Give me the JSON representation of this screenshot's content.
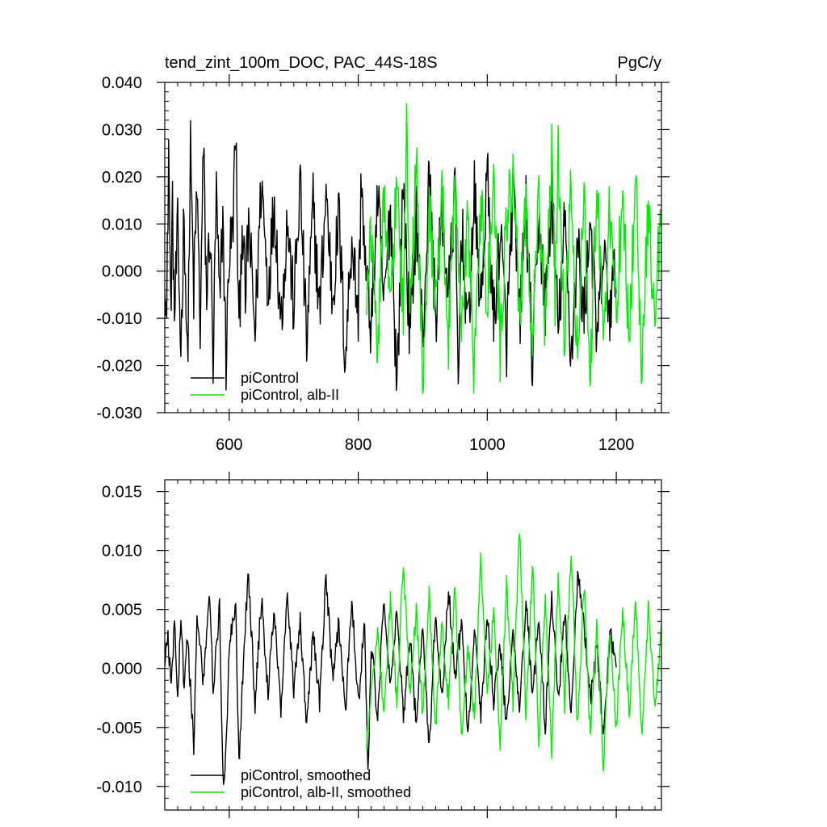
{
  "header": {
    "title": "tend_zint_100m_DOC, PAC_44S-18S",
    "units": "PgC/y"
  },
  "colors": {
    "control": "#000000",
    "alb": "#00ee00"
  },
  "chart_data": [
    {
      "type": "line",
      "title": "tend_zint_100m_DOC, PAC_44S-18S",
      "units_label": "PgC/y",
      "xlabel": "",
      "ylabel": "",
      "xlim": [
        500,
        1270
      ],
      "ylim": [
        -0.03,
        0.04
      ],
      "xticks": [
        600,
        800,
        1000,
        1200
      ],
      "xtick_labels": [
        "600",
        "800",
        "1000",
        "1200"
      ],
      "yticks": [
        -0.03,
        -0.02,
        -0.01,
        0.0,
        0.01,
        0.02,
        0.03,
        0.04
      ],
      "ytick_labels": [
        "-0.030",
        "-0.020",
        "-0.010",
        "0.000",
        "0.010",
        "0.020",
        "0.030",
        "0.040"
      ],
      "legend_position": "bottom-left",
      "grid": false,
      "series": [
        {
          "name": "piControl",
          "color": "#000000",
          "x_range": [
            500,
            1200
          ],
          "x": [
            500,
            503,
            506,
            509,
            512,
            515,
            520,
            525,
            530,
            535,
            540,
            545,
            550,
            555,
            560,
            565,
            570,
            575,
            580,
            585,
            590,
            595,
            600,
            605,
            610,
            615,
            620,
            625,
            630,
            640,
            650,
            660,
            670,
            680,
            690,
            700,
            710,
            720,
            730,
            740,
            750,
            760,
            770,
            780,
            790,
            800,
            805,
            810,
            820,
            830,
            840,
            850,
            855,
            860,
            870,
            880,
            890,
            900,
            910,
            920,
            930,
            940,
            950,
            955,
            960,
            970,
            980,
            990,
            1000,
            1010,
            1020,
            1030,
            1040,
            1050,
            1060,
            1070,
            1080,
            1090,
            1100,
            1110,
            1120,
            1130,
            1140,
            1150,
            1160,
            1170,
            1180,
            1190,
            1200
          ],
          "values": [
            0.003,
            -0.012,
            0.028,
            -0.008,
            0.012,
            -0.01,
            0.008,
            -0.017,
            0.014,
            -0.021,
            0.025,
            -0.005,
            0.018,
            -0.012,
            0.026,
            -0.006,
            0.01,
            -0.02,
            0.016,
            -0.008,
            0.012,
            -0.019,
            0.004,
            0.008,
            0.03,
            -0.015,
            0.012,
            -0.006,
            0.01,
            -0.013,
            0.02,
            -0.004,
            0.015,
            -0.011,
            0.011,
            -0.008,
            0.019,
            -0.016,
            0.014,
            -0.009,
            0.017,
            -0.006,
            0.012,
            -0.019,
            0.008,
            -0.01,
            0.022,
            0.002,
            -0.012,
            0.016,
            -0.008,
            0.014,
            -0.005,
            -0.024,
            0.019,
            -0.014,
            0.012,
            -0.015,
            0.02,
            -0.01,
            0.013,
            -0.006,
            0.018,
            -0.026,
            0.011,
            -0.014,
            0.016,
            -0.008,
            0.021,
            -0.012,
            0.009,
            -0.015,
            0.018,
            -0.011,
            0.014,
            -0.02,
            0.012,
            -0.008,
            0.016,
            -0.013,
            0.01,
            -0.018,
            0.006,
            -0.01,
            0.012,
            -0.016,
            0.004,
            -0.009,
            0.002
          ]
        },
        {
          "name": "piControl, alb-II",
          "color": "#00ee00",
          "x_range": [
            813,
            1270
          ],
          "x": [
            813,
            820,
            830,
            840,
            850,
            860,
            870,
            875,
            880,
            890,
            900,
            910,
            920,
            930,
            940,
            950,
            960,
            970,
            980,
            990,
            1000,
            1010,
            1020,
            1030,
            1040,
            1050,
            1060,
            1070,
            1080,
            1090,
            1100,
            1105,
            1110,
            1120,
            1130,
            1140,
            1150,
            1160,
            1170,
            1180,
            1190,
            1200,
            1210,
            1220,
            1230,
            1240,
            1250,
            1260,
            1270
          ],
          "values": [
            -0.002,
            0.008,
            -0.014,
            0.015,
            -0.008,
            0.02,
            -0.01,
            0.032,
            -0.012,
            0.024,
            -0.023,
            0.014,
            -0.008,
            0.017,
            -0.014,
            0.02,
            -0.01,
            0.012,
            -0.022,
            0.016,
            -0.006,
            0.019,
            -0.016,
            0.011,
            0.022,
            -0.01,
            0.014,
            -0.017,
            0.018,
            -0.012,
            0.026,
            -0.005,
            0.025,
            -0.014,
            0.018,
            -0.019,
            0.015,
            -0.02,
            0.02,
            -0.012,
            0.014,
            -0.009,
            0.018,
            -0.016,
            0.021,
            -0.022,
            0.015,
            -0.012,
            0.016
          ]
        }
      ]
    },
    {
      "type": "line",
      "title": "",
      "xlabel": "",
      "ylabel": "",
      "xlim": [
        500,
        1270
      ],
      "ylim": [
        -0.012,
        0.016
      ],
      "xticks": [
        600,
        800,
        1000,
        1200
      ],
      "xtick_labels": [],
      "yticks": [
        -0.01,
        -0.005,
        0.0,
        0.005,
        0.01,
        0.015
      ],
      "ytick_labels": [
        "-0.010",
        "-0.005",
        "0.000",
        "0.005",
        "0.010",
        "0.015"
      ],
      "legend_position": "bottom-left",
      "grid": false,
      "series": [
        {
          "name": "piControl, smoothed",
          "color": "#000000",
          "x_range": [
            500,
            1200
          ],
          "x": [
            500,
            505,
            510,
            515,
            520,
            525,
            530,
            535,
            545,
            550,
            560,
            570,
            575,
            585,
            590,
            593,
            600,
            610,
            615,
            625,
            630,
            640,
            650,
            660,
            670,
            680,
            690,
            700,
            710,
            720,
            730,
            740,
            750,
            760,
            770,
            780,
            790,
            800,
            810,
            815,
            820,
            830,
            840,
            850,
            860,
            870,
            880,
            890,
            900,
            910,
            920,
            930,
            940,
            950,
            960,
            970,
            980,
            990,
            1000,
            1010,
            1020,
            1030,
            1040,
            1050,
            1060,
            1070,
            1080,
            1090,
            1100,
            1110,
            1120,
            1130,
            1140,
            1150,
            1160,
            1170,
            1180,
            1190,
            1200
          ],
          "values": [
            0.001,
            0.003,
            -0.002,
            0.004,
            -0.003,
            0.005,
            -0.002,
            0.003,
            -0.0065,
            0.004,
            -0.001,
            0.006,
            -0.002,
            0.005,
            -0.0085,
            -0.01,
            0.002,
            0.005,
            -0.008,
            0.004,
            0.008,
            -0.003,
            0.006,
            -0.002,
            0.005,
            -0.004,
            0.007,
            -0.002,
            0.004,
            -0.005,
            0.003,
            -0.003,
            0.008,
            -0.001,
            0.004,
            -0.004,
            0.006,
            -0.003,
            0.004,
            -0.009,
            0.002,
            -0.004,
            0.006,
            -0.002,
            0.005,
            -0.004,
            0.003,
            -0.005,
            0.004,
            -0.007,
            0.005,
            -0.003,
            0.007,
            -0.001,
            0.004,
            -0.006,
            0.003,
            -0.004,
            0.005,
            -0.003,
            0.002,
            -0.005,
            0.003,
            -0.004,
            0.006,
            -0.002,
            0.004,
            -0.005,
            0.006,
            -0.003,
            0.005,
            -0.004,
            0.008,
            0.004,
            -0.003,
            0.002,
            -0.006,
            0.003,
            0.001
          ]
        },
        {
          "name": "piControl, alb-II, smoothed",
          "color": "#00ee00",
          "x_range": [
            813,
            1270
          ],
          "x": [
            813,
            820,
            830,
            840,
            850,
            860,
            870,
            880,
            890,
            900,
            910,
            920,
            930,
            940,
            950,
            960,
            970,
            980,
            990,
            1000,
            1010,
            1020,
            1030,
            1040,
            1050,
            1060,
            1070,
            1080,
            1090,
            1100,
            1110,
            1120,
            1130,
            1140,
            1150,
            1160,
            1170,
            1180,
            1190,
            1200,
            1210,
            1220,
            1230,
            1240,
            1250,
            1260,
            1270
          ],
          "values": [
            -0.006,
            -0.002,
            0.003,
            -0.004,
            0.006,
            -0.003,
            0.009,
            -0.002,
            0.005,
            -0.004,
            0.006,
            -0.005,
            0.004,
            -0.003,
            0.007,
            -0.006,
            0.002,
            -0.004,
            0.009,
            -0.002,
            0.005,
            -0.006,
            0.007,
            -0.003,
            0.012,
            -0.004,
            0.009,
            -0.006,
            0.006,
            -0.007,
            0.008,
            -0.003,
            0.01,
            -0.005,
            0.007,
            -0.006,
            0.004,
            -0.008,
            0.003,
            -0.005,
            0.005,
            -0.004,
            0.006,
            -0.006,
            0.005,
            -0.003,
            0.003
          ]
        }
      ]
    }
  ]
}
